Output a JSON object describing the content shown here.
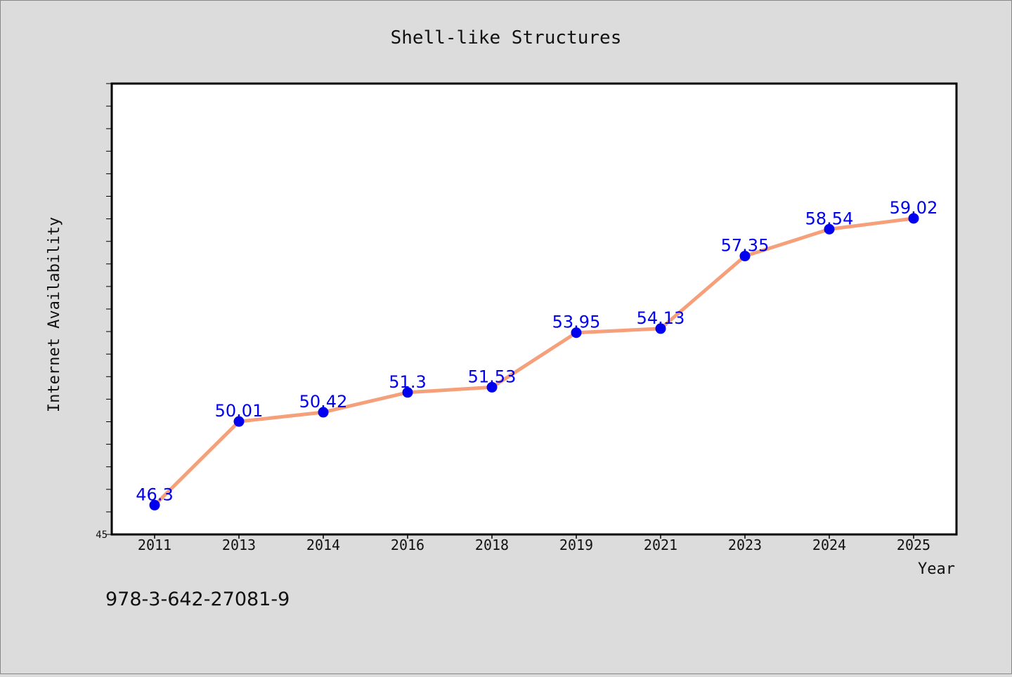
{
  "chart_data": {
    "type": "line",
    "title": "Shell-like Structures",
    "xlabel": "Year",
    "ylabel": "Internet Availability",
    "categories": [
      "2011",
      "2013",
      "2014",
      "2016",
      "2018",
      "2019",
      "2021",
      "2023",
      "2024",
      "2025"
    ],
    "series": [
      {
        "values": [
          46.3,
          50.01,
          50.42,
          51.3,
          51.53,
          53.95,
          54.13,
          57.35,
          58.54,
          59.02
        ],
        "data_labels": [
          "46.3",
          "50.01",
          "50.42",
          "51.3",
          "51.53",
          "53.95",
          "54.13",
          "57.35",
          "58.54",
          "59.02"
        ]
      }
    ],
    "ylim": [
      45,
      65
    ],
    "ylim_label": "45",
    "grid": false,
    "legend": "none",
    "colors": {
      "line": "#f5a07a",
      "marker": "#0000ee",
      "label": "#0000ee",
      "background": "#dcdcdc",
      "plot_background": "#ffffff"
    }
  },
  "footer": {
    "isbn": "978-3-642-27081-9"
  }
}
